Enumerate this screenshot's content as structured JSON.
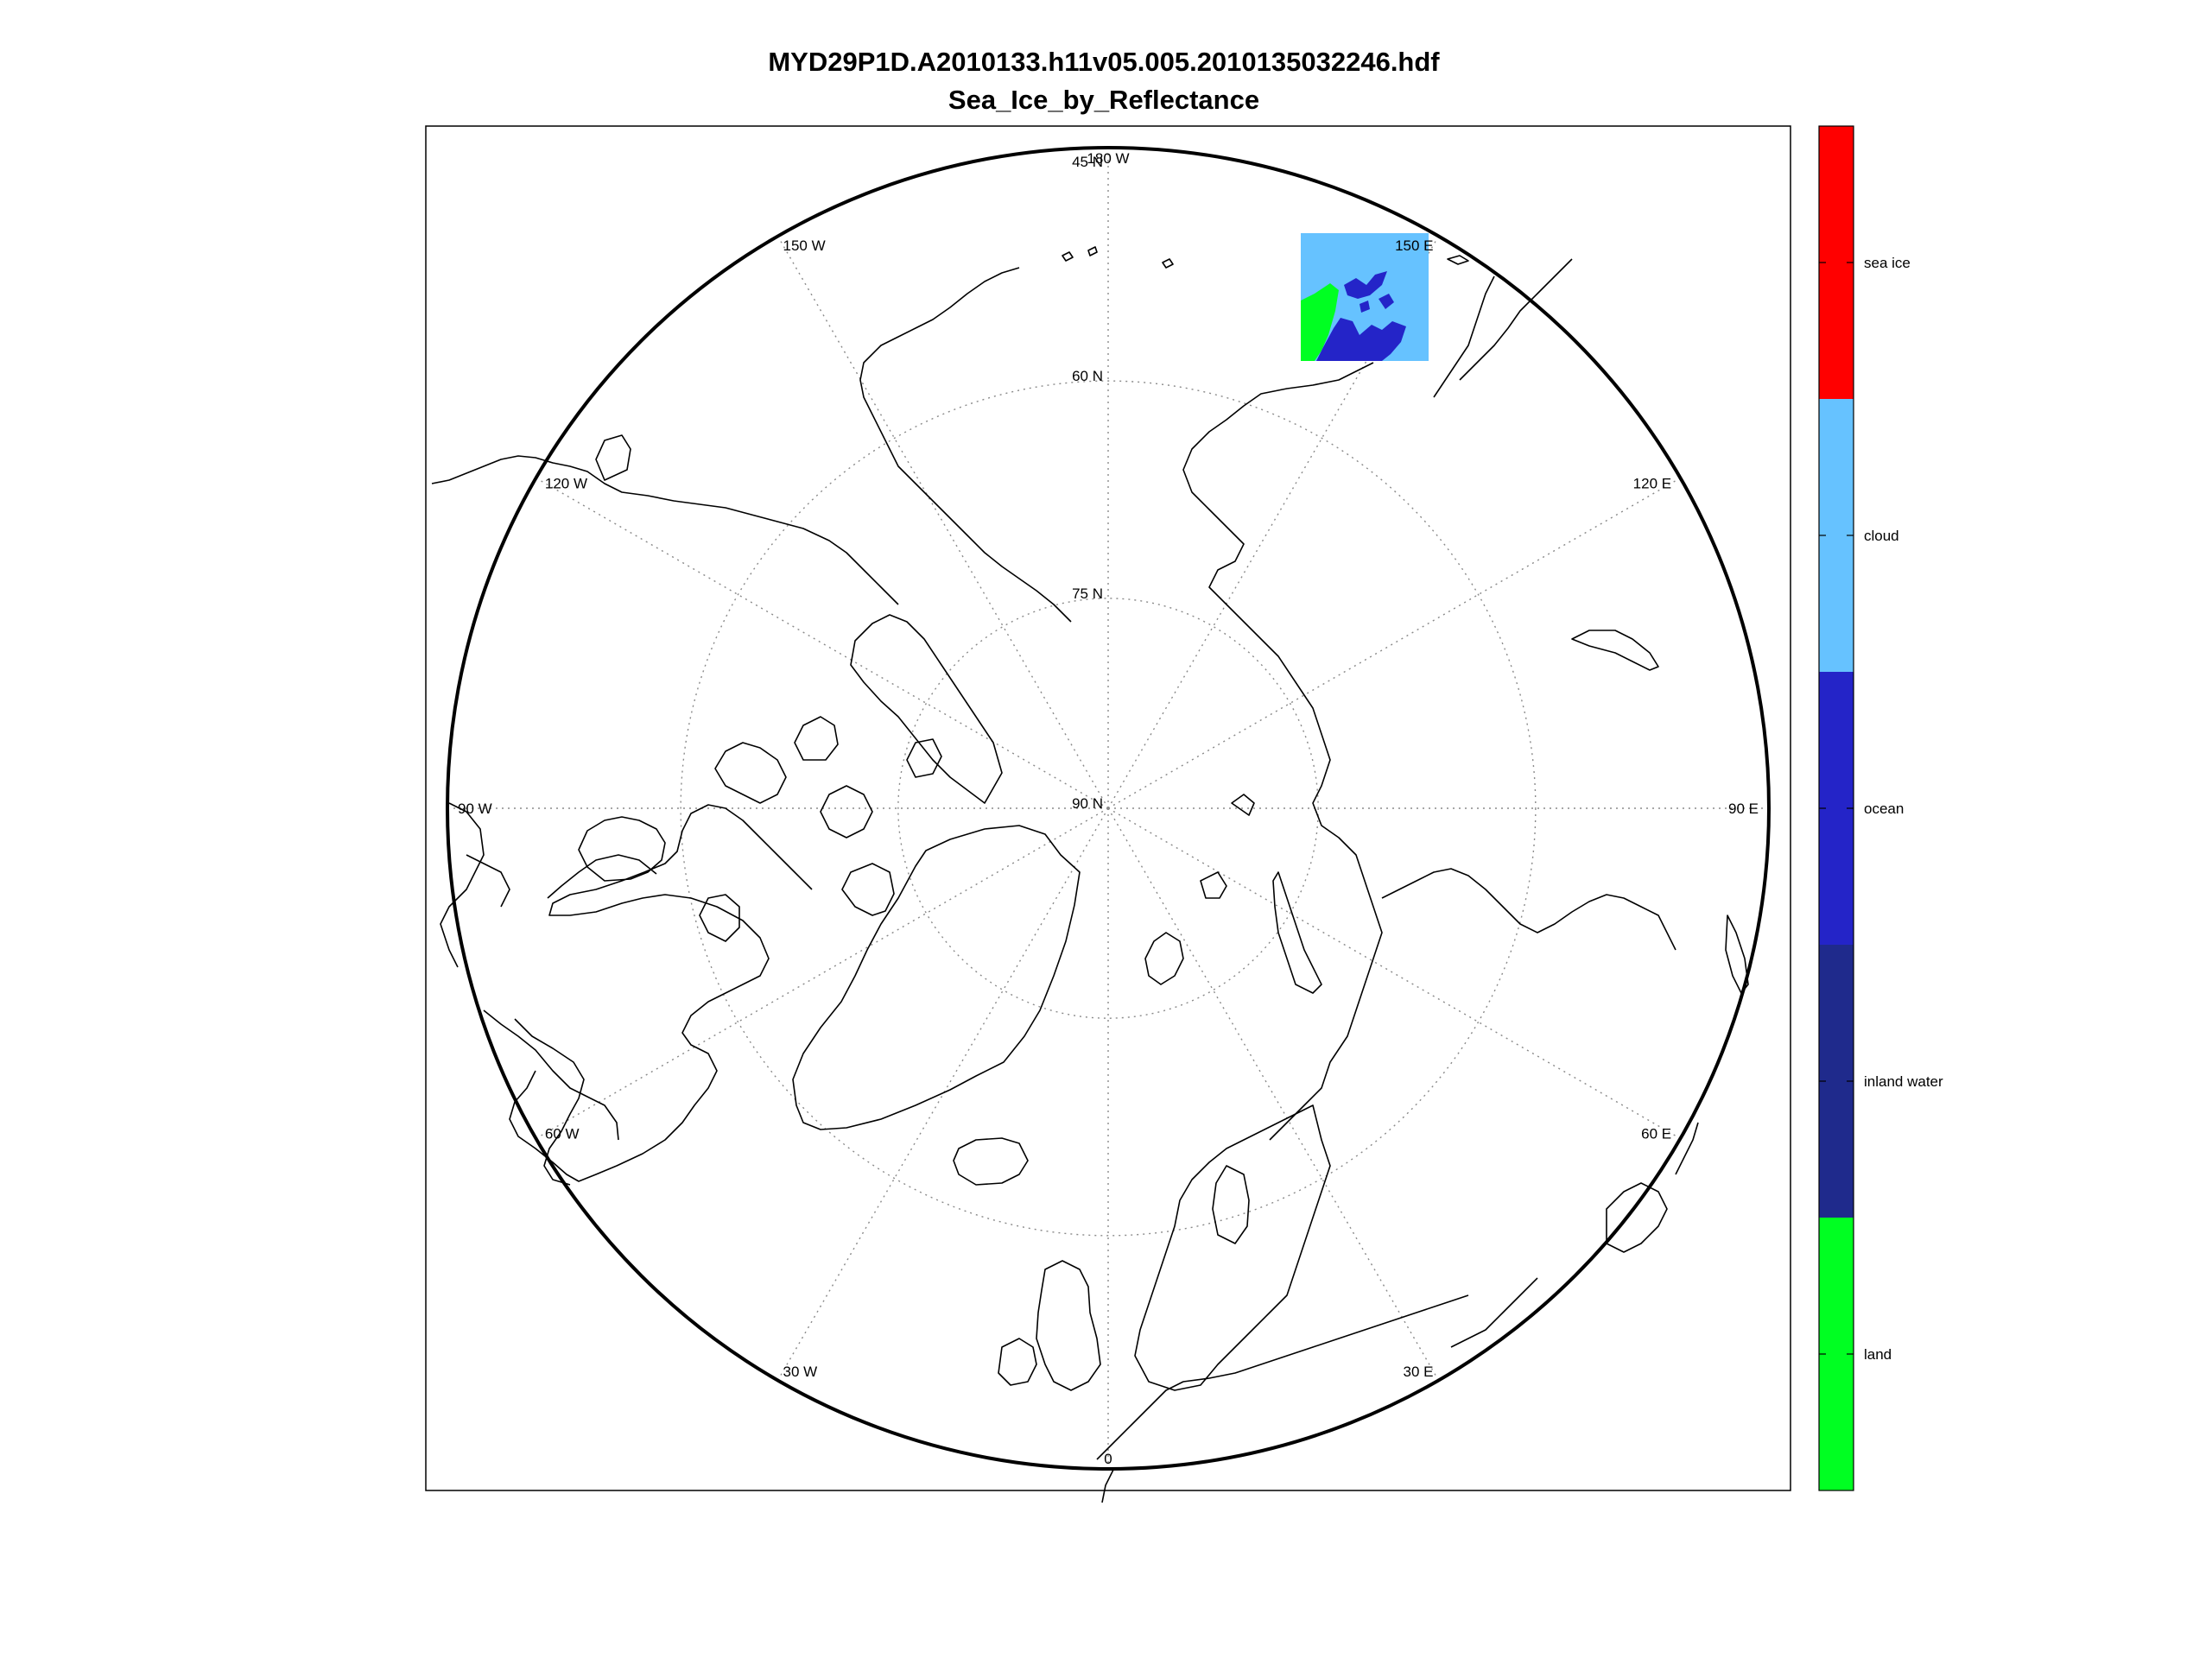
{
  "figure": {
    "title_line1": "MYD29P1D.A2010133.h11v05.005.2010135032246.hdf",
    "title_line2": "Sea_Ice_by_Reflectance"
  },
  "map": {
    "projection": "north polar stereographic",
    "parallels": [
      {
        "lat": 45,
        "label": "45 N"
      },
      {
        "lat": 60,
        "label": "60 N"
      },
      {
        "lat": 75,
        "label": "75 N"
      },
      {
        "lat": 90,
        "label": "90 N"
      }
    ],
    "meridians": [
      {
        "lon": 0,
        "label": "0"
      },
      {
        "lon": 30,
        "label": "30 E"
      },
      {
        "lon": 60,
        "label": "60 E"
      },
      {
        "lon": 90,
        "label": "90 E"
      },
      {
        "lon": 120,
        "label": "120 E"
      },
      {
        "lon": 150,
        "label": "150 E"
      },
      {
        "lon": 180,
        "label": "180 W"
      },
      {
        "lon": -150,
        "label": "150 W"
      },
      {
        "lon": -120,
        "label": "120 W"
      },
      {
        "lon": -90,
        "label": "90 W"
      },
      {
        "lon": -60,
        "label": "60 W"
      },
      {
        "lon": -30,
        "label": "30 W"
      }
    ],
    "data_tile": {
      "tile": "h11v05",
      "classes_present": [
        "land",
        "ocean",
        "cloud"
      ]
    }
  },
  "colorbar": {
    "classes": [
      {
        "label": "sea ice",
        "color": "#ff0000"
      },
      {
        "label": "cloud",
        "color": "#66c2ff"
      },
      {
        "label": "ocean",
        "color": "#2424c8"
      },
      {
        "label": "inland water",
        "color": "#1f2a8c"
      },
      {
        "label": "land",
        "color": "#00ff22"
      }
    ]
  }
}
